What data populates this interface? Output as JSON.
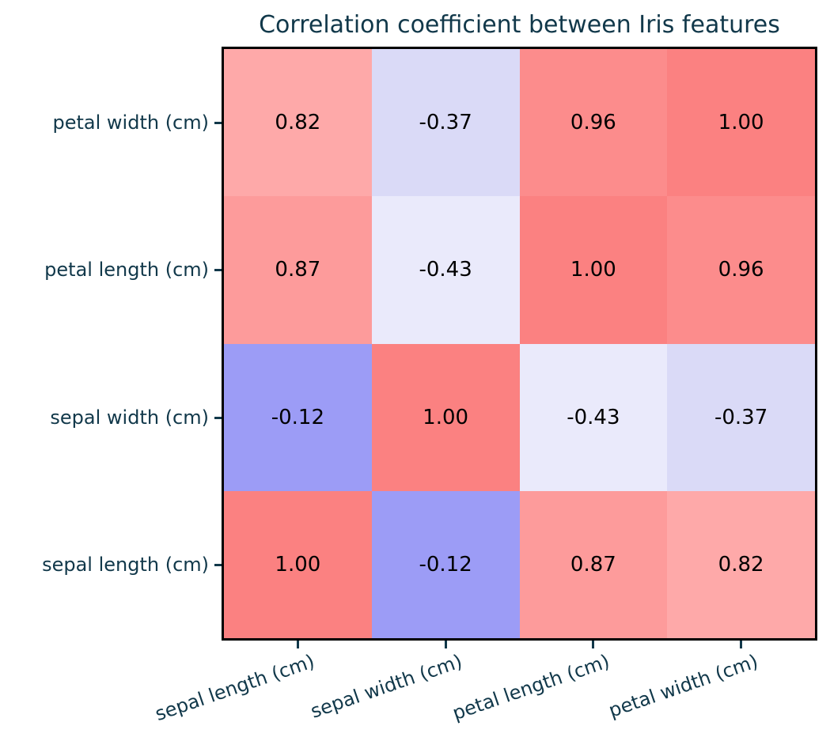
{
  "chart_data": {
    "type": "heatmap",
    "title": "Correlation coefficient between Iris features",
    "x_categories": [
      "sepal length (cm)",
      "sepal width (cm)",
      "petal length (cm)",
      "petal width (cm)"
    ],
    "y_categories_top_to_bottom": [
      "petal width (cm)",
      "petal length (cm)",
      "sepal width (cm)",
      "sepal length (cm)"
    ],
    "matrix_rows_top_to_bottom": [
      [
        0.82,
        -0.37,
        0.96,
        1.0
      ],
      [
        0.87,
        -0.43,
        1.0,
        0.96
      ],
      [
        -0.12,
        1.0,
        -0.43,
        -0.37
      ],
      [
        1.0,
        -0.12,
        0.87,
        0.82
      ]
    ],
    "cell_labels": [
      [
        "0.82",
        "-0.37",
        "0.96",
        "1.00"
      ],
      [
        "0.87",
        "-0.43",
        "1.00",
        "0.96"
      ],
      [
        "-0.12",
        "1.00",
        "-0.43",
        "-0.37"
      ],
      [
        "1.00",
        "-0.12",
        "0.87",
        "0.82"
      ]
    ],
    "value_colors": {
      "1.00": "#fb8181",
      "0.96": "#fc8c8c",
      "0.87": "#fd9b9b",
      "0.82": "#fea9a9",
      "-0.12": "#9c9cf6",
      "-0.37": "#dadaf7",
      "-0.43": "#eaeafb"
    },
    "colors": {
      "title_text": "#11384a",
      "tick_text": "#11384a",
      "cell_text": "#000000",
      "plot_border": "#000000",
      "background": "#ffffff"
    },
    "legend": "none",
    "grid": "off",
    "colorbar": "none"
  }
}
